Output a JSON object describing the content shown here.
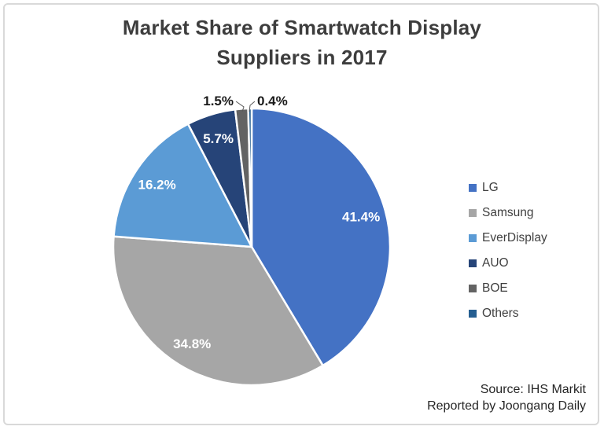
{
  "window": {
    "background_color": "#ffffff",
    "frame_border_color": "#d9d9d9"
  },
  "chart_data": {
    "type": "pie",
    "title": "Market Share of Smartwatch Display Suppliers in 2017",
    "title_lines": [
      "Market Share of Smartwatch Display",
      "Suppliers in 2017"
    ],
    "start_angle_deg": 0,
    "direction": "clockwise",
    "categories": [
      "LG",
      "Samsung",
      "EverDisplay",
      "AUO",
      "BOE",
      "Others"
    ],
    "values": [
      41.4,
      34.8,
      16.2,
      5.7,
      1.5,
      0.4
    ],
    "series": [
      {
        "name": "LG",
        "value": 41.4,
        "label": "41.4%",
        "color": "#4472C4",
        "label_position": "inside",
        "label_color": "#FFFFFF"
      },
      {
        "name": "Samsung",
        "value": 34.8,
        "label": "34.8%",
        "color": "#A6A6A6",
        "label_position": "inside",
        "label_color": "#FFFFFF"
      },
      {
        "name": "EverDisplay",
        "value": 16.2,
        "label": "16.2%",
        "color": "#5B9BD5",
        "label_position": "inside",
        "label_color": "#FFFFFF"
      },
      {
        "name": "AUO",
        "value": 5.7,
        "label": "5.7%",
        "color": "#264478",
        "label_position": "inside",
        "label_color": "#FFFFFF"
      },
      {
        "name": "BOE",
        "value": 1.5,
        "label": "1.5%",
        "color": "#636363",
        "label_position": "outside",
        "label_color": "#1A1A1A"
      },
      {
        "name": "Others",
        "value": 0.4,
        "label": "0.4%",
        "color": "#255E91",
        "label_position": "outside",
        "label_color": "#1A1A1A"
      }
    ],
    "legend": {
      "position": "right",
      "entries": [
        "LG",
        "Samsung",
        "EverDisplay",
        "AUO",
        "BOE",
        "Others"
      ]
    },
    "slice_border_color": "#FFFFFF",
    "leader_line_color": "#595959",
    "source_lines": [
      "Source: IHS Markit",
      "Reported by Joongang Daily"
    ]
  }
}
